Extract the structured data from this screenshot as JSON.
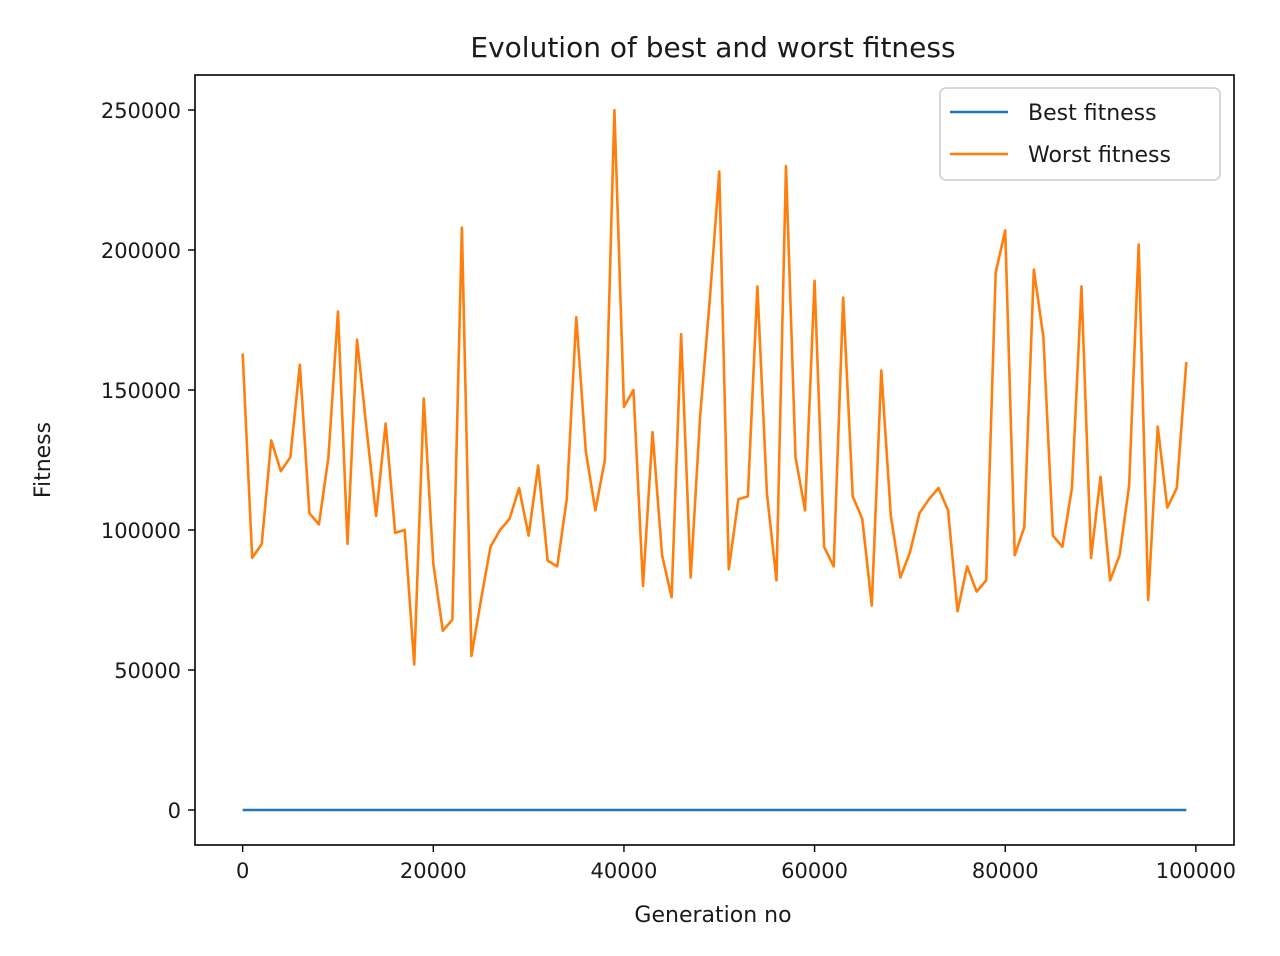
{
  "chart_data": {
    "type": "line",
    "title": "Evolution of best and worst fitness",
    "xlabel": "Generation no",
    "ylabel": "Fitness",
    "xlim": [
      -5000,
      104000
    ],
    "ylim": [
      -12500,
      262500
    ],
    "xticks": [
      0,
      20000,
      40000,
      60000,
      80000,
      100000
    ],
    "yticks": [
      0,
      50000,
      100000,
      150000,
      200000,
      250000
    ],
    "grid": false,
    "legend_position": "top-right",
    "x": [
      0,
      1000,
      2000,
      3000,
      4000,
      5000,
      6000,
      7000,
      8000,
      9000,
      10000,
      11000,
      12000,
      13000,
      14000,
      15000,
      16000,
      17000,
      18000,
      19000,
      20000,
      21000,
      22000,
      23000,
      24000,
      25000,
      26000,
      27000,
      28000,
      29000,
      30000,
      31000,
      32000,
      33000,
      34000,
      35000,
      36000,
      37000,
      38000,
      39000,
      40000,
      41000,
      42000,
      43000,
      44000,
      45000,
      46000,
      47000,
      48000,
      49000,
      50000,
      51000,
      52000,
      53000,
      54000,
      55000,
      56000,
      57000,
      58000,
      59000,
      60000,
      61000,
      62000,
      63000,
      64000,
      65000,
      66000,
      67000,
      68000,
      69000,
      70000,
      71000,
      72000,
      73000,
      74000,
      75000,
      76000,
      77000,
      78000,
      79000,
      80000,
      81000,
      82000,
      83000,
      84000,
      85000,
      86000,
      87000,
      88000,
      89000,
      90000,
      91000,
      92000,
      93000,
      94000,
      95000,
      96000,
      97000,
      98000,
      99000
    ],
    "series": [
      {
        "name": "Best fitness",
        "color": "#1f77b4",
        "values": [
          0,
          0,
          0,
          0,
          0,
          0,
          0,
          0,
          0,
          0,
          0,
          0,
          0,
          0,
          0,
          0,
          0,
          0,
          0,
          0,
          0,
          0,
          0,
          0,
          0,
          0,
          0,
          0,
          0,
          0,
          0,
          0,
          0,
          0,
          0,
          0,
          0,
          0,
          0,
          0,
          0,
          0,
          0,
          0,
          0,
          0,
          0,
          0,
          0,
          0,
          0,
          0,
          0,
          0,
          0,
          0,
          0,
          0,
          0,
          0,
          0,
          0,
          0,
          0,
          0,
          0,
          0,
          0,
          0,
          0,
          0,
          0,
          0,
          0,
          0,
          0,
          0,
          0,
          0,
          0,
          0,
          0,
          0,
          0,
          0,
          0,
          0,
          0,
          0,
          0,
          0,
          0,
          0,
          0,
          0,
          0,
          0,
          0,
          0,
          0
        ]
      },
      {
        "name": "Worst fitness",
        "color": "#ff7f0e",
        "values": [
          163000,
          90000,
          95000,
          132000,
          121000,
          126000,
          159000,
          106000,
          102000,
          126000,
          178000,
          95000,
          168000,
          136000,
          105000,
          138000,
          99000,
          100000,
          52000,
          147000,
          88000,
          64000,
          68000,
          208000,
          55000,
          75000,
          94000,
          100000,
          104000,
          115000,
          98000,
          123000,
          89000,
          87000,
          111000,
          176000,
          128000,
          107000,
          125000,
          250000,
          144000,
          150000,
          80000,
          135000,
          91000,
          76000,
          170000,
          83000,
          141000,
          182000,
          228000,
          86000,
          111000,
          112000,
          187000,
          113000,
          82000,
          230000,
          126000,
          107000,
          189000,
          94000,
          87000,
          183000,
          112000,
          104000,
          73000,
          157000,
          105000,
          83000,
          92000,
          106000,
          111000,
          115000,
          107000,
          71000,
          87000,
          78000,
          82000,
          192000,
          207000,
          91000,
          101000,
          193000,
          169000,
          98000,
          94000,
          115000,
          187000,
          90000,
          119000,
          82000,
          91000,
          116000,
          202000,
          75000,
          137000,
          108000,
          115000,
          160000
        ]
      }
    ]
  }
}
